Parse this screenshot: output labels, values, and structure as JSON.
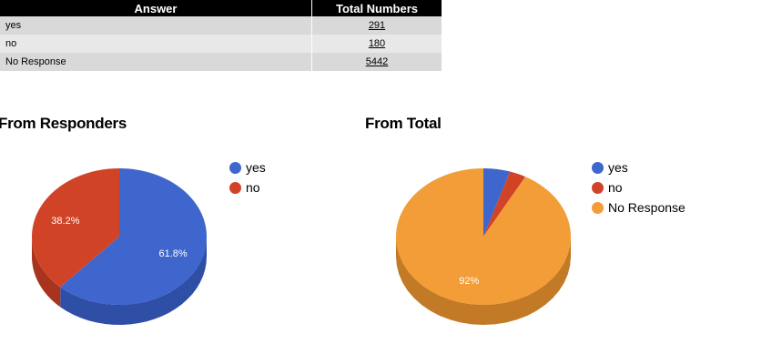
{
  "table": {
    "headers": [
      "Answer",
      "Total Numbers"
    ],
    "rows": [
      {
        "answer": "yes",
        "total": "291"
      },
      {
        "answer": "no",
        "total": "180"
      },
      {
        "answer": "No Response",
        "total": "5442"
      }
    ]
  },
  "colors": {
    "yes": "#3e66cc",
    "no": "#d14326",
    "no_response": "#f29d38",
    "yes_side": "#2f4ea6",
    "no_side": "#a8341d",
    "no_response_side": "#c27a26"
  },
  "chart_data": [
    {
      "type": "pie",
      "title": "From Responders",
      "labels": [
        "yes",
        "no"
      ],
      "values": [
        291,
        180
      ],
      "percent_labels": [
        "61.8%",
        "38.2%"
      ],
      "start_angle_deg": 0,
      "three_d": true,
      "legend": "right"
    },
    {
      "type": "pie",
      "title": "From Total",
      "labels": [
        "yes",
        "no",
        "No Response"
      ],
      "values": [
        291,
        180,
        5442
      ],
      "percent_labels": [
        "",
        "",
        "92%"
      ],
      "start_angle_deg": 0,
      "three_d": true,
      "legend": "right"
    }
  ]
}
